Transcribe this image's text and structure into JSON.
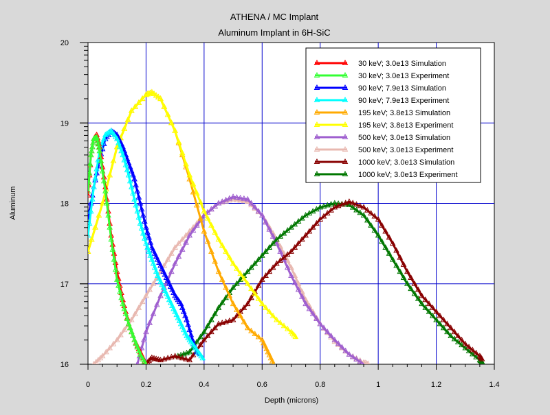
{
  "header": {
    "title": "ATHENA / MC Implant",
    "subtitle": "Aluminum Implant in 6H-SiC"
  },
  "chart_data": {
    "type": "line",
    "xlabel": "Depth (microns)",
    "ylabel": "Aluminum",
    "xlim": [
      0,
      1.4
    ],
    "ylim": [
      16,
      20
    ],
    "y_scale": "log10",
    "grid": true,
    "legend_position": "top-right",
    "x_ticks": [
      0,
      0.2,
      0.4,
      0.6,
      0.8,
      1,
      1.2,
      1.4
    ],
    "x_tick_labels": [
      "0",
      "0.2",
      "0.4",
      "0.6",
      "0.8",
      "1",
      "1.2",
      "1.4"
    ],
    "y_ticks": [
      16,
      17,
      18,
      19,
      20
    ],
    "y_tick_labels": [
      "16",
      "17",
      "18",
      "19",
      "20"
    ],
    "series": [
      {
        "name": "30 keV; 3.0e13 Simulation",
        "color": "#ff0000",
        "x": [
          0.0,
          0.01,
          0.02,
          0.03,
          0.04,
          0.06,
          0.08,
          0.1,
          0.12,
          0.14,
          0.16,
          0.18,
          0.2
        ],
        "y": [
          18.1,
          18.6,
          18.8,
          18.85,
          18.7,
          18.2,
          17.6,
          17.15,
          16.8,
          16.5,
          16.3,
          16.15,
          16.0
        ]
      },
      {
        "name": "30 keV; 3.0e13 Experiment",
        "color": "#33ff33",
        "x": [
          0.0,
          0.01,
          0.02,
          0.03,
          0.04,
          0.06,
          0.08,
          0.1,
          0.12,
          0.14,
          0.16,
          0.18,
          0.2
        ],
        "y": [
          18.15,
          18.6,
          18.8,
          18.82,
          18.65,
          18.15,
          17.55,
          17.05,
          16.75,
          16.5,
          16.3,
          16.12,
          16.0
        ]
      },
      {
        "name": "90 keV; 7.9e13 Simulation",
        "color": "#0000ff",
        "x": [
          0.0,
          0.02,
          0.04,
          0.06,
          0.08,
          0.1,
          0.12,
          0.14,
          0.16,
          0.18,
          0.2,
          0.22,
          0.24,
          0.26,
          0.28,
          0.3,
          0.32,
          0.34,
          0.36,
          0.38
        ],
        "y": [
          17.8,
          18.2,
          18.55,
          18.8,
          18.9,
          18.85,
          18.7,
          18.5,
          18.3,
          18.0,
          17.7,
          17.45,
          17.3,
          17.15,
          17.0,
          16.85,
          16.75,
          16.55,
          16.3,
          16.1
        ]
      },
      {
        "name": "90 keV; 7.9e13 Experiment",
        "color": "#00ffff",
        "x": [
          0.0,
          0.02,
          0.04,
          0.06,
          0.08,
          0.1,
          0.12,
          0.14,
          0.16,
          0.18,
          0.2,
          0.22,
          0.24,
          0.26,
          0.28,
          0.3,
          0.32,
          0.34,
          0.36,
          0.38,
          0.4
        ],
        "y": [
          17.6,
          18.2,
          18.65,
          18.85,
          18.9,
          18.8,
          18.6,
          18.35,
          18.05,
          17.75,
          17.5,
          17.3,
          17.1,
          16.95,
          16.8,
          16.65,
          16.5,
          16.35,
          16.25,
          16.15,
          16.05
        ]
      },
      {
        "name": "195 keV; 3.8e13 Simulation",
        "color": "#ffaa00",
        "x": [
          0.0,
          0.05,
          0.1,
          0.15,
          0.2,
          0.22,
          0.25,
          0.3,
          0.35,
          0.4,
          0.45,
          0.5,
          0.55,
          0.6,
          0.62,
          0.64
        ],
        "y": [
          17.4,
          18.0,
          18.7,
          19.15,
          19.35,
          19.38,
          19.3,
          18.9,
          18.3,
          17.65,
          17.15,
          16.75,
          16.45,
          16.3,
          16.15,
          16.0
        ]
      },
      {
        "name": "195 keV; 3.8e13 Experiment",
        "color": "#ffff00",
        "x": [
          0.0,
          0.05,
          0.1,
          0.15,
          0.2,
          0.22,
          0.25,
          0.3,
          0.35,
          0.4,
          0.45,
          0.5,
          0.55,
          0.6,
          0.65,
          0.7,
          0.72
        ],
        "y": [
          17.4,
          18.0,
          18.7,
          19.15,
          19.35,
          19.38,
          19.3,
          18.9,
          18.35,
          17.9,
          17.55,
          17.25,
          17.0,
          16.75,
          16.55,
          16.4,
          16.32
        ]
      },
      {
        "name": "500 keV; 3.0e13 Simulation",
        "color": "#9f5fcf",
        "x": [
          0.17,
          0.2,
          0.25,
          0.3,
          0.35,
          0.4,
          0.45,
          0.5,
          0.55,
          0.6,
          0.65,
          0.7,
          0.75,
          0.8,
          0.85,
          0.9,
          0.95
        ],
        "y": [
          16.0,
          16.4,
          16.85,
          17.25,
          17.6,
          17.85,
          18.0,
          18.08,
          18.05,
          17.85,
          17.5,
          17.1,
          16.75,
          16.5,
          16.3,
          16.12,
          16.0
        ]
      },
      {
        "name": "500 keV; 3.0e13 Experiment",
        "color": "#e8b8b0",
        "x": [
          0.02,
          0.05,
          0.1,
          0.15,
          0.2,
          0.25,
          0.3,
          0.35,
          0.4,
          0.45,
          0.5,
          0.55,
          0.6,
          0.65,
          0.7,
          0.75,
          0.8,
          0.85,
          0.9,
          0.95,
          0.97
        ],
        "y": [
          16.0,
          16.1,
          16.3,
          16.55,
          16.85,
          17.15,
          17.45,
          17.65,
          17.85,
          18.0,
          18.05,
          18.02,
          17.85,
          17.55,
          17.2,
          16.8,
          16.5,
          16.28,
          16.12,
          16.02,
          16.0
        ]
      },
      {
        "name": "1000 keV; 3.0e13 Simulation",
        "color": "#880000",
        "x": [
          0.2,
          0.22,
          0.25,
          0.3,
          0.35,
          0.4,
          0.45,
          0.5,
          0.55,
          0.6,
          0.65,
          0.7,
          0.75,
          0.8,
          0.85,
          0.9,
          0.95,
          1.0,
          1.05,
          1.1,
          1.15,
          1.2,
          1.25,
          1.3,
          1.35,
          1.36
        ],
        "y": [
          16.0,
          16.08,
          16.05,
          16.1,
          16.05,
          16.3,
          16.5,
          16.55,
          16.75,
          17.05,
          17.25,
          17.4,
          17.6,
          17.8,
          17.95,
          18.02,
          17.95,
          17.8,
          17.5,
          17.15,
          16.85,
          16.65,
          16.45,
          16.25,
          16.1,
          16.05
        ]
      },
      {
        "name": "1000 keV; 3.0e13 Experiment",
        "color": "#007700",
        "x": [
          0.31,
          0.35,
          0.4,
          0.45,
          0.5,
          0.55,
          0.6,
          0.65,
          0.7,
          0.75,
          0.8,
          0.85,
          0.9,
          0.95,
          1.0,
          1.05,
          1.1,
          1.15,
          1.2,
          1.25,
          1.3,
          1.35,
          1.36
        ],
        "y": [
          16.1,
          16.15,
          16.4,
          16.7,
          16.95,
          17.15,
          17.35,
          17.55,
          17.7,
          17.85,
          17.95,
          18.0,
          17.98,
          17.85,
          17.6,
          17.3,
          17.0,
          16.75,
          16.55,
          16.35,
          16.2,
          16.05,
          16.02
        ]
      }
    ]
  }
}
